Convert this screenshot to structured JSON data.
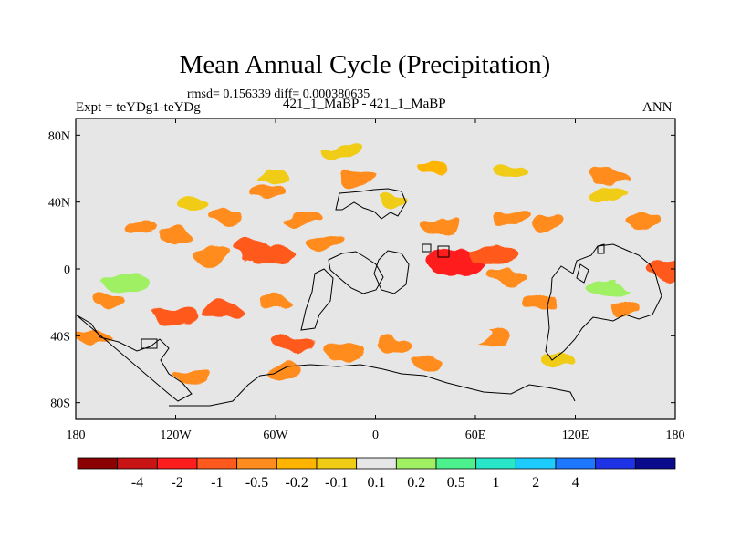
{
  "header": {
    "title": "Mean Annual Cycle (Precipitation)",
    "stats": "rmsd= 0.156339 diff= 0.000380635",
    "left_subtitle": "Expt = teYDg1-teYDg",
    "center_subtitle": "421_1_MaBP - 421_1_MaBP",
    "right_subtitle": "ANN"
  },
  "chart_data": {
    "type": "heatmap",
    "title": "Mean Annual Cycle (Precipitation)",
    "variable": "Precipitation difference",
    "xlabel": "",
    "ylabel": "",
    "xlim": [
      -180,
      180
    ],
    "ylim": [
      -90,
      90
    ],
    "x_ticks": [
      {
        "value": -180,
        "label": "180"
      },
      {
        "value": -120,
        "label": "120W"
      },
      {
        "value": -60,
        "label": "60W"
      },
      {
        "value": 0,
        "label": "0"
      },
      {
        "value": 60,
        "label": "60E"
      },
      {
        "value": 120,
        "label": "120E"
      },
      {
        "value": 180,
        "label": "180"
      }
    ],
    "y_ticks": [
      {
        "value": 80,
        "label": "80N"
      },
      {
        "value": 40,
        "label": "40N"
      },
      {
        "value": 0,
        "label": "0"
      },
      {
        "value": -40,
        "label": "40S"
      },
      {
        "value": -80,
        "label": "80S"
      }
    ],
    "colorbar": {
      "colors": [
        "#8b0000",
        "#c81414",
        "#ff1e1e",
        "#ff5a1e",
        "#ff8c1e",
        "#ffb400",
        "#f0cc14",
        "#e6e6e6",
        "#a0f064",
        "#4cf08c",
        "#28e6c8",
        "#1ecbff",
        "#1e78ff",
        "#1e32e6",
        "#0a0a8c"
      ],
      "labels": [
        "-4",
        "-2",
        "-1",
        "-0.5",
        "-0.2",
        "-0.1",
        "0.1",
        "0.2",
        "0.5",
        "1",
        "2",
        "4"
      ]
    },
    "anomalies": [
      {
        "lon": -140,
        "lat": 25,
        "v": -0.2
      },
      {
        "lon": -120,
        "lat": 20,
        "v": -0.2
      },
      {
        "lon": -75,
        "lat": 12,
        "v": -0.5
      },
      {
        "lon": -60,
        "lat": 8,
        "v": -0.5
      },
      {
        "lon": -30,
        "lat": 15,
        "v": -0.2
      },
      {
        "lon": -90,
        "lat": 30,
        "v": -0.2
      },
      {
        "lon": -45,
        "lat": 30,
        "v": -0.2
      },
      {
        "lon": -100,
        "lat": 8,
        "v": -0.2
      },
      {
        "lon": -120,
        "lat": -28,
        "v": -0.5
      },
      {
        "lon": -90,
        "lat": -25,
        "v": -0.5
      },
      {
        "lon": -160,
        "lat": -20,
        "v": -0.2
      },
      {
        "lon": -60,
        "lat": -20,
        "v": -0.2
      },
      {
        "lon": -50,
        "lat": -45,
        "v": -0.5
      },
      {
        "lon": -20,
        "lat": -50,
        "v": -0.2
      },
      {
        "lon": 10,
        "lat": -45,
        "v": -0.2
      },
      {
        "lon": 50,
        "lat": 3,
        "v": -1
      },
      {
        "lon": 70,
        "lat": 8,
        "v": -0.5
      },
      {
        "lon": 80,
        "lat": -5,
        "v": -0.2
      },
      {
        "lon": 40,
        "lat": 25,
        "v": -0.2
      },
      {
        "lon": 80,
        "lat": 30,
        "v": -0.2
      },
      {
        "lon": 105,
        "lat": 27,
        "v": -0.2
      },
      {
        "lon": 175,
        "lat": 0,
        "v": -0.5
      },
      {
        "lon": 150,
        "lat": -25,
        "v": -0.2
      },
      {
        "lon": 100,
        "lat": -20,
        "v": -0.2
      },
      {
        "lon": -110,
        "lat": -65,
        "v": -0.2
      },
      {
        "lon": -55,
        "lat": -60,
        "v": -0.2
      },
      {
        "lon": 30,
        "lat": -55,
        "v": -0.2
      },
      {
        "lon": 70,
        "lat": -40,
        "v": -0.2
      },
      {
        "lon": -170,
        "lat": -40,
        "v": -0.2
      },
      {
        "lon": -65,
        "lat": 45,
        "v": -0.2
      },
      {
        "lon": 140,
        "lat": 55,
        "v": -0.2
      },
      {
        "lon": -10,
        "lat": 55,
        "v": -0.2
      },
      {
        "lon": 160,
        "lat": 28,
        "v": -0.2
      },
      {
        "lon": 35,
        "lat": 60,
        "v": -0.1
      },
      {
        "lon": -130,
        "lat": 8,
        "v": 0.2
      },
      {
        "lon": -150,
        "lat": -8,
        "v": 0.5
      },
      {
        "lon": -110,
        "lat": -15,
        "v": 0.2
      },
      {
        "lon": -80,
        "lat": -10,
        "v": 0.2
      },
      {
        "lon": -160,
        "lat": 10,
        "v": 0.2
      },
      {
        "lon": -30,
        "lat": -15,
        "v": 0.2
      },
      {
        "lon": 0,
        "lat": -25,
        "v": 0.2
      },
      {
        "lon": 30,
        "lat": -20,
        "v": 0.2
      },
      {
        "lon": 60,
        "lat": 18,
        "v": 0.2
      },
      {
        "lon": 90,
        "lat": 18,
        "v": 0.2
      },
      {
        "lon": 140,
        "lat": 20,
        "v": 0.2
      },
      {
        "lon": 140,
        "lat": -12,
        "v": 0.5
      },
      {
        "lon": 155,
        "lat": -8,
        "v": 0.2
      },
      {
        "lon": 120,
        "lat": 10,
        "v": 0.2
      },
      {
        "lon": 60,
        "lat": -38,
        "v": 0.2
      },
      {
        "lon": -80,
        "lat": -55,
        "v": 0.2
      },
      {
        "lon": -170,
        "lat": -55,
        "v": 0.2
      },
      {
        "lon": -60,
        "lat": 55,
        "v": 0.1
      },
      {
        "lon": 80,
        "lat": 60,
        "v": 0.1
      },
      {
        "lon": 140,
        "lat": 45,
        "v": 0.1
      },
      {
        "lon": -110,
        "lat": 40,
        "v": 0.1
      },
      {
        "lon": 10,
        "lat": 40,
        "v": 0.1
      },
      {
        "lon": 110,
        "lat": -55,
        "v": 0.1
      },
      {
        "lon": -20,
        "lat": 70,
        "v": 0.1
      }
    ]
  }
}
